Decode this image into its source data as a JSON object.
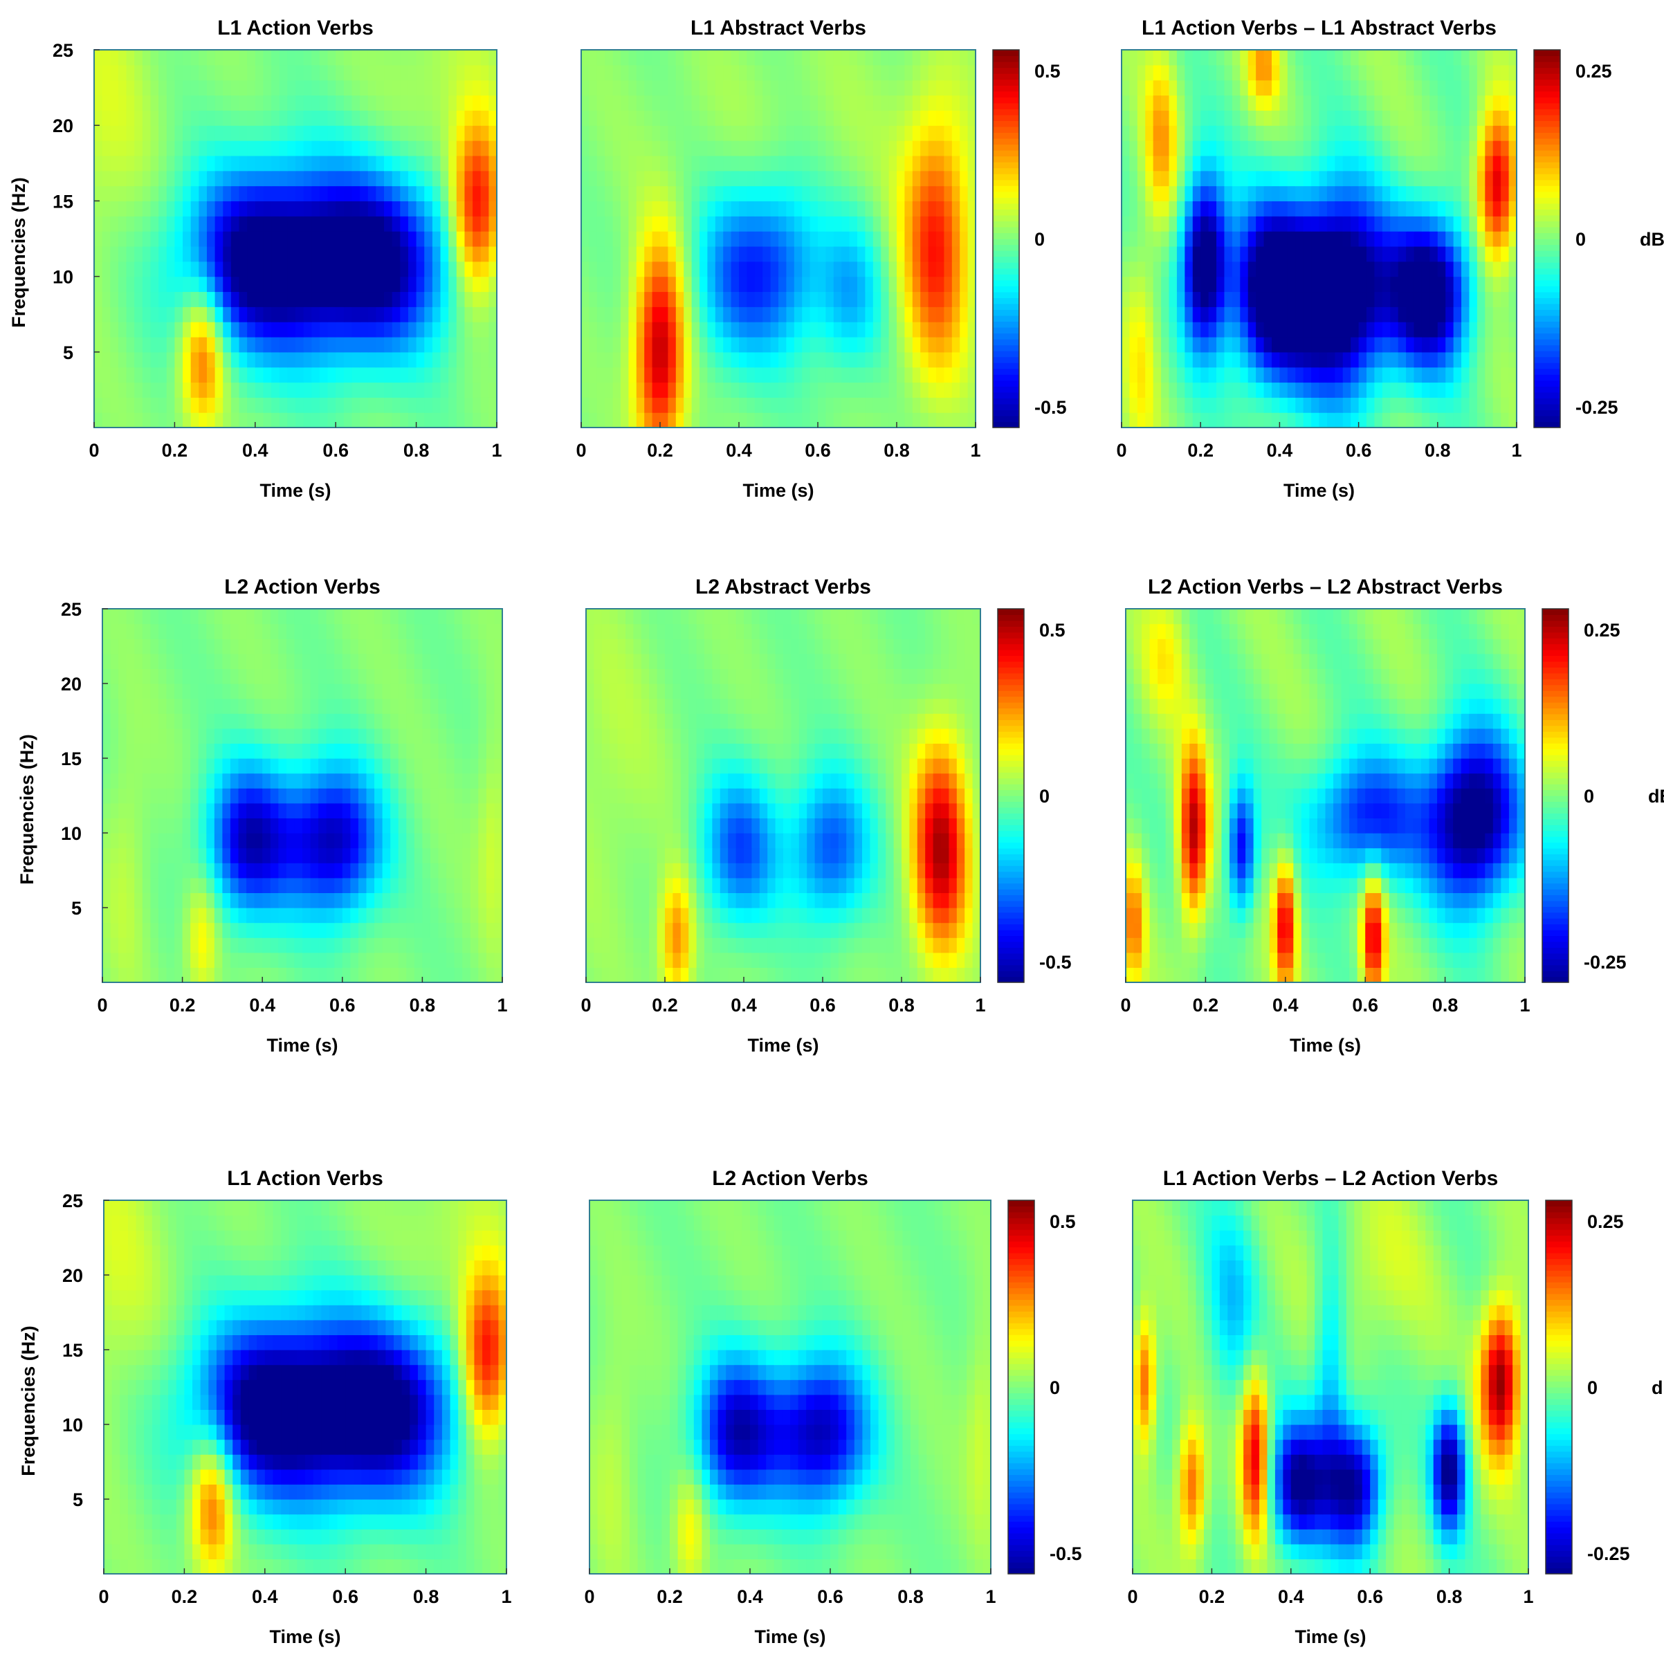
{
  "figure": {
    "colors": {
      "jet": [
        "#00008f",
        "#0000ff",
        "#0080ff",
        "#00ffff",
        "#80ff80",
        "#ffff00",
        "#ff8000",
        "#ff0000",
        "#800000"
      ],
      "frame": "#2f7f8f"
    }
  },
  "chart_data": [
    {
      "type": "heatmap",
      "title": "L1 Action Verbs",
      "xlabel": "Time (s)",
      "ylabel": "Frequencies (Hz)",
      "xlim": [
        0,
        1
      ],
      "ylim": [
        0,
        25
      ],
      "xticks": [
        "0",
        "0.2",
        "0.4",
        "0.6",
        "0.8",
        "1"
      ],
      "yticks": [
        "5",
        "10",
        "15",
        "20",
        "25"
      ],
      "clim": [
        -0.5,
        0.5
      ],
      "colorbar": null,
      "blobs": [
        [
          0.55,
          11,
          0.2,
          4.2,
          -0.55
        ],
        [
          0.38,
          11,
          0.1,
          4,
          -0.2
        ],
        [
          0.72,
          11,
          0.1,
          4,
          -0.2
        ],
        [
          0.95,
          14.5,
          0.045,
          4,
          0.42
        ],
        [
          0.27,
          5,
          0.04,
          3.5,
          0.32
        ],
        [
          0.02,
          20,
          0.1,
          8,
          0.08
        ],
        [
          0.85,
          22,
          0.1,
          5,
          0.06
        ]
      ]
    },
    {
      "type": "heatmap",
      "title": "L1 Abstract Verbs",
      "xlabel": "Time (s)",
      "ylabel": "",
      "xlim": [
        0,
        1
      ],
      "ylim": [
        0,
        25
      ],
      "xticks": [
        "0",
        "0.2",
        "0.4",
        "0.6",
        "0.8",
        "1"
      ],
      "yticks": [],
      "clim": [
        -0.5,
        0.5
      ],
      "colorbar": {
        "ticks": [
          "0.5",
          "0",
          "-0.5"
        ],
        "unit": ""
      },
      "blobs": [
        [
          0.4,
          10,
          0.08,
          4,
          -0.28
        ],
        [
          0.52,
          11,
          0.07,
          4,
          -0.2
        ],
        [
          0.68,
          9,
          0.06,
          3.5,
          -0.2
        ],
        [
          0.2,
          5,
          0.045,
          5,
          0.45
        ],
        [
          0.9,
          12,
          0.06,
          6,
          0.35
        ],
        [
          0.55,
          20,
          0.3,
          5,
          0.03
        ]
      ]
    },
    {
      "type": "heatmap",
      "title": "L1 Action Verbs – L1 Abstract Verbs",
      "xlabel": "Time (s)",
      "ylabel": "",
      "xlim": [
        0,
        1
      ],
      "ylim": [
        0,
        25
      ],
      "xticks": [
        "0",
        "0.2",
        "0.4",
        "0.6",
        "0.8",
        "1"
      ],
      "yticks": [],
      "clim": [
        -0.25,
        0.25
      ],
      "colorbar": {
        "ticks": [
          "0.25",
          "0",
          "-0.25"
        ],
        "unit": "dB"
      },
      "blobs": [
        [
          0.21,
          11,
          0.04,
          4,
          -0.3
        ],
        [
          0.38,
          9,
          0.07,
          4,
          -0.3
        ],
        [
          0.55,
          9,
          0.09,
          4.5,
          -0.35
        ],
        [
          0.78,
          9,
          0.07,
          3.5,
          -0.3
        ],
        [
          0.95,
          16,
          0.035,
          3.5,
          0.22
        ],
        [
          0.1,
          19,
          0.03,
          4,
          0.1
        ],
        [
          0.36,
          24,
          0.03,
          2,
          0.1
        ],
        [
          0.05,
          5,
          0.03,
          5,
          0.06
        ]
      ]
    },
    {
      "type": "heatmap",
      "title": "L2 Action Verbs",
      "xlabel": "Time (s)",
      "ylabel": "Frequencies (Hz)",
      "xlim": [
        0,
        1
      ],
      "ylim": [
        0,
        25
      ],
      "xticks": [
        "0",
        "0.2",
        "0.4",
        "0.6",
        "0.8",
        "1"
      ],
      "yticks": [
        "5",
        "10",
        "15",
        "20",
        "25"
      ],
      "clim": [
        -0.5,
        0.5
      ],
      "colorbar": null,
      "blobs": [
        [
          0.36,
          9.5,
          0.07,
          3.5,
          -0.38
        ],
        [
          0.59,
          9.5,
          0.08,
          3.5,
          -0.38
        ],
        [
          0.48,
          9.5,
          0.1,
          3.5,
          -0.15
        ],
        [
          0.25,
          3,
          0.03,
          3,
          0.15
        ],
        [
          0.06,
          8,
          0.04,
          6,
          0.06
        ],
        [
          0.98,
          10,
          0.03,
          5,
          0.08
        ]
      ]
    },
    {
      "type": "heatmap",
      "title": "L2 Abstract Verbs",
      "xlabel": "Time (s)",
      "ylabel": "",
      "xlim": [
        0,
        1
      ],
      "ylim": [
        0,
        25
      ],
      "xticks": [
        "0",
        "0.2",
        "0.4",
        "0.6",
        "0.8",
        "1"
      ],
      "yticks": [],
      "clim": [
        -0.5,
        0.5
      ],
      "colorbar": {
        "ticks": [
          "0.5",
          "0",
          "-0.5"
        ],
        "unit": ""
      },
      "blobs": [
        [
          0.39,
          9,
          0.07,
          3.5,
          -0.3
        ],
        [
          0.62,
          9,
          0.07,
          3.5,
          -0.3
        ],
        [
          0.9,
          9,
          0.05,
          5,
          0.45
        ],
        [
          0.23,
          3,
          0.03,
          3,
          0.25
        ],
        [
          0.05,
          15,
          0.1,
          8,
          0.05
        ]
      ]
    },
    {
      "type": "heatmap",
      "title": "L2 Action Verbs – L2 Abstract Verbs",
      "xlabel": "Time (s)",
      "ylabel": "",
      "xlim": [
        0,
        1
      ],
      "ylim": [
        0,
        25
      ],
      "xticks": [
        "0",
        "0.2",
        "0.4",
        "0.6",
        "0.8",
        "1"
      ],
      "yticks": [],
      "clim": [
        -0.25,
        0.25
      ],
      "colorbar": {
        "ticks": [
          "0.25",
          "0",
          "-0.25"
        ],
        "unit": "dB"
      },
      "blobs": [
        [
          0.17,
          10,
          0.025,
          4,
          0.22
        ],
        [
          0.29,
          9,
          0.025,
          3,
          -0.2
        ],
        [
          0.4,
          4,
          0.02,
          3,
          0.2
        ],
        [
          0.62,
          3,
          0.02,
          3,
          0.2
        ],
        [
          0.6,
          11,
          0.1,
          3,
          -0.18
        ],
        [
          0.87,
          11,
          0.08,
          4,
          -0.3
        ],
        [
          0.02,
          4,
          0.02,
          3,
          0.12
        ],
        [
          0.1,
          22,
          0.04,
          3,
          0.06
        ]
      ]
    },
    {
      "type": "heatmap",
      "title": "L1 Action Verbs",
      "xlabel": "Time (s)",
      "ylabel": "Frequencies (Hz)",
      "xlim": [
        0,
        1
      ],
      "ylim": [
        0,
        25
      ],
      "xticks": [
        "0",
        "0.2",
        "0.4",
        "0.6",
        "0.8",
        "1"
      ],
      "yticks": [
        "5",
        "10",
        "15",
        "20",
        "25"
      ],
      "clim": [
        -0.5,
        0.5
      ],
      "colorbar": null,
      "blobs": [
        [
          0.55,
          11,
          0.2,
          4.2,
          -0.55
        ],
        [
          0.38,
          11,
          0.1,
          4,
          -0.2
        ],
        [
          0.72,
          11,
          0.1,
          4,
          -0.2
        ],
        [
          0.95,
          14.5,
          0.045,
          4,
          0.42
        ],
        [
          0.27,
          5,
          0.04,
          3.5,
          0.32
        ],
        [
          0.02,
          20,
          0.1,
          8,
          0.08
        ],
        [
          0.85,
          22,
          0.1,
          5,
          0.06
        ]
      ]
    },
    {
      "type": "heatmap",
      "title": "L2 Action Verbs",
      "xlabel": "Time (s)",
      "ylabel": "",
      "xlim": [
        0,
        1
      ],
      "ylim": [
        0,
        25
      ],
      "xticks": [
        "0",
        "0.2",
        "0.4",
        "0.6",
        "0.8",
        "1"
      ],
      "yticks": [],
      "clim": [
        -0.5,
        0.5
      ],
      "colorbar": {
        "ticks": [
          "0.5",
          "0",
          "-0.5"
        ],
        "unit": ""
      },
      "blobs": [
        [
          0.36,
          9.5,
          0.07,
          3.5,
          -0.38
        ],
        [
          0.59,
          9.5,
          0.08,
          3.5,
          -0.38
        ],
        [
          0.48,
          9.5,
          0.1,
          3.5,
          -0.15
        ],
        [
          0.25,
          3,
          0.03,
          3,
          0.15
        ],
        [
          0.06,
          8,
          0.04,
          6,
          0.06
        ],
        [
          0.98,
          10,
          0.03,
          5,
          0.08
        ]
      ]
    },
    {
      "type": "heatmap",
      "title": "L1 Action Verbs – L2 Action Verbs",
      "xlabel": "Time (s)",
      "ylabel": "",
      "xlim": [
        0,
        1
      ],
      "ylim": [
        0,
        25
      ],
      "xticks": [
        "0",
        "0.2",
        "0.4",
        "0.6",
        "0.8",
        "1"
      ],
      "yticks": [],
      "clim": [
        -0.25,
        0.25
      ],
      "colorbar": {
        "ticks": [
          "0.25",
          "0",
          "-0.25"
        ],
        "unit": "dB"
      },
      "blobs": [
        [
          0.93,
          13,
          0.035,
          3.5,
          0.25
        ],
        [
          0.31,
          8,
          0.025,
          4,
          0.2
        ],
        [
          0.15,
          6,
          0.025,
          3,
          0.15
        ],
        [
          0.03,
          13,
          0.02,
          3,
          0.15
        ],
        [
          0.42,
          6,
          0.05,
          3,
          -0.25
        ],
        [
          0.56,
          6,
          0.05,
          3,
          -0.25
        ],
        [
          0.8,
          7,
          0.03,
          3,
          -0.25
        ],
        [
          0.5,
          14,
          0.03,
          6,
          -0.1
        ],
        [
          0.25,
          18,
          0.05,
          5,
          -0.08
        ],
        [
          0.6,
          20,
          0.1,
          4,
          0.04
        ]
      ]
    }
  ]
}
